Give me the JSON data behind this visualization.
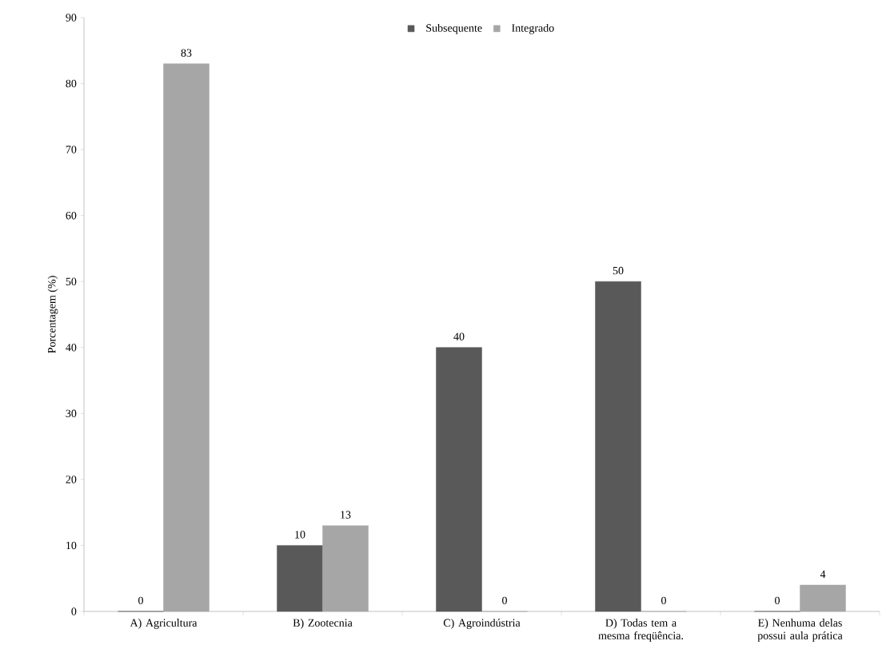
{
  "chart_data": {
    "type": "bar",
    "ylabel": "Porcentagem (%)",
    "categories": [
      "A) Agricultura",
      "B) Zootecnia",
      "C) Agroindústria",
      "D) Todas tem a mesma freqüência.",
      "E) Nenhuma delas possui aula prática"
    ],
    "series": [
      {
        "name": "Subsequente",
        "color": "#595959",
        "values": [
          0,
          10,
          40,
          50,
          0
        ],
        "value_labels": [
          "0",
          "10",
          "40",
          "50",
          "0"
        ]
      },
      {
        "name": "Integrado",
        "color": "#a6a6a6",
        "values": [
          83,
          13,
          0,
          0,
          4
        ],
        "value_labels": [
          "83",
          "13",
          "0",
          "0",
          "4"
        ]
      }
    ],
    "ylim": [
      0,
      90
    ],
    "yticks": [
      0,
      10,
      20,
      30,
      40,
      50,
      60,
      70,
      80,
      90
    ],
    "legend": "top",
    "grid": false
  }
}
